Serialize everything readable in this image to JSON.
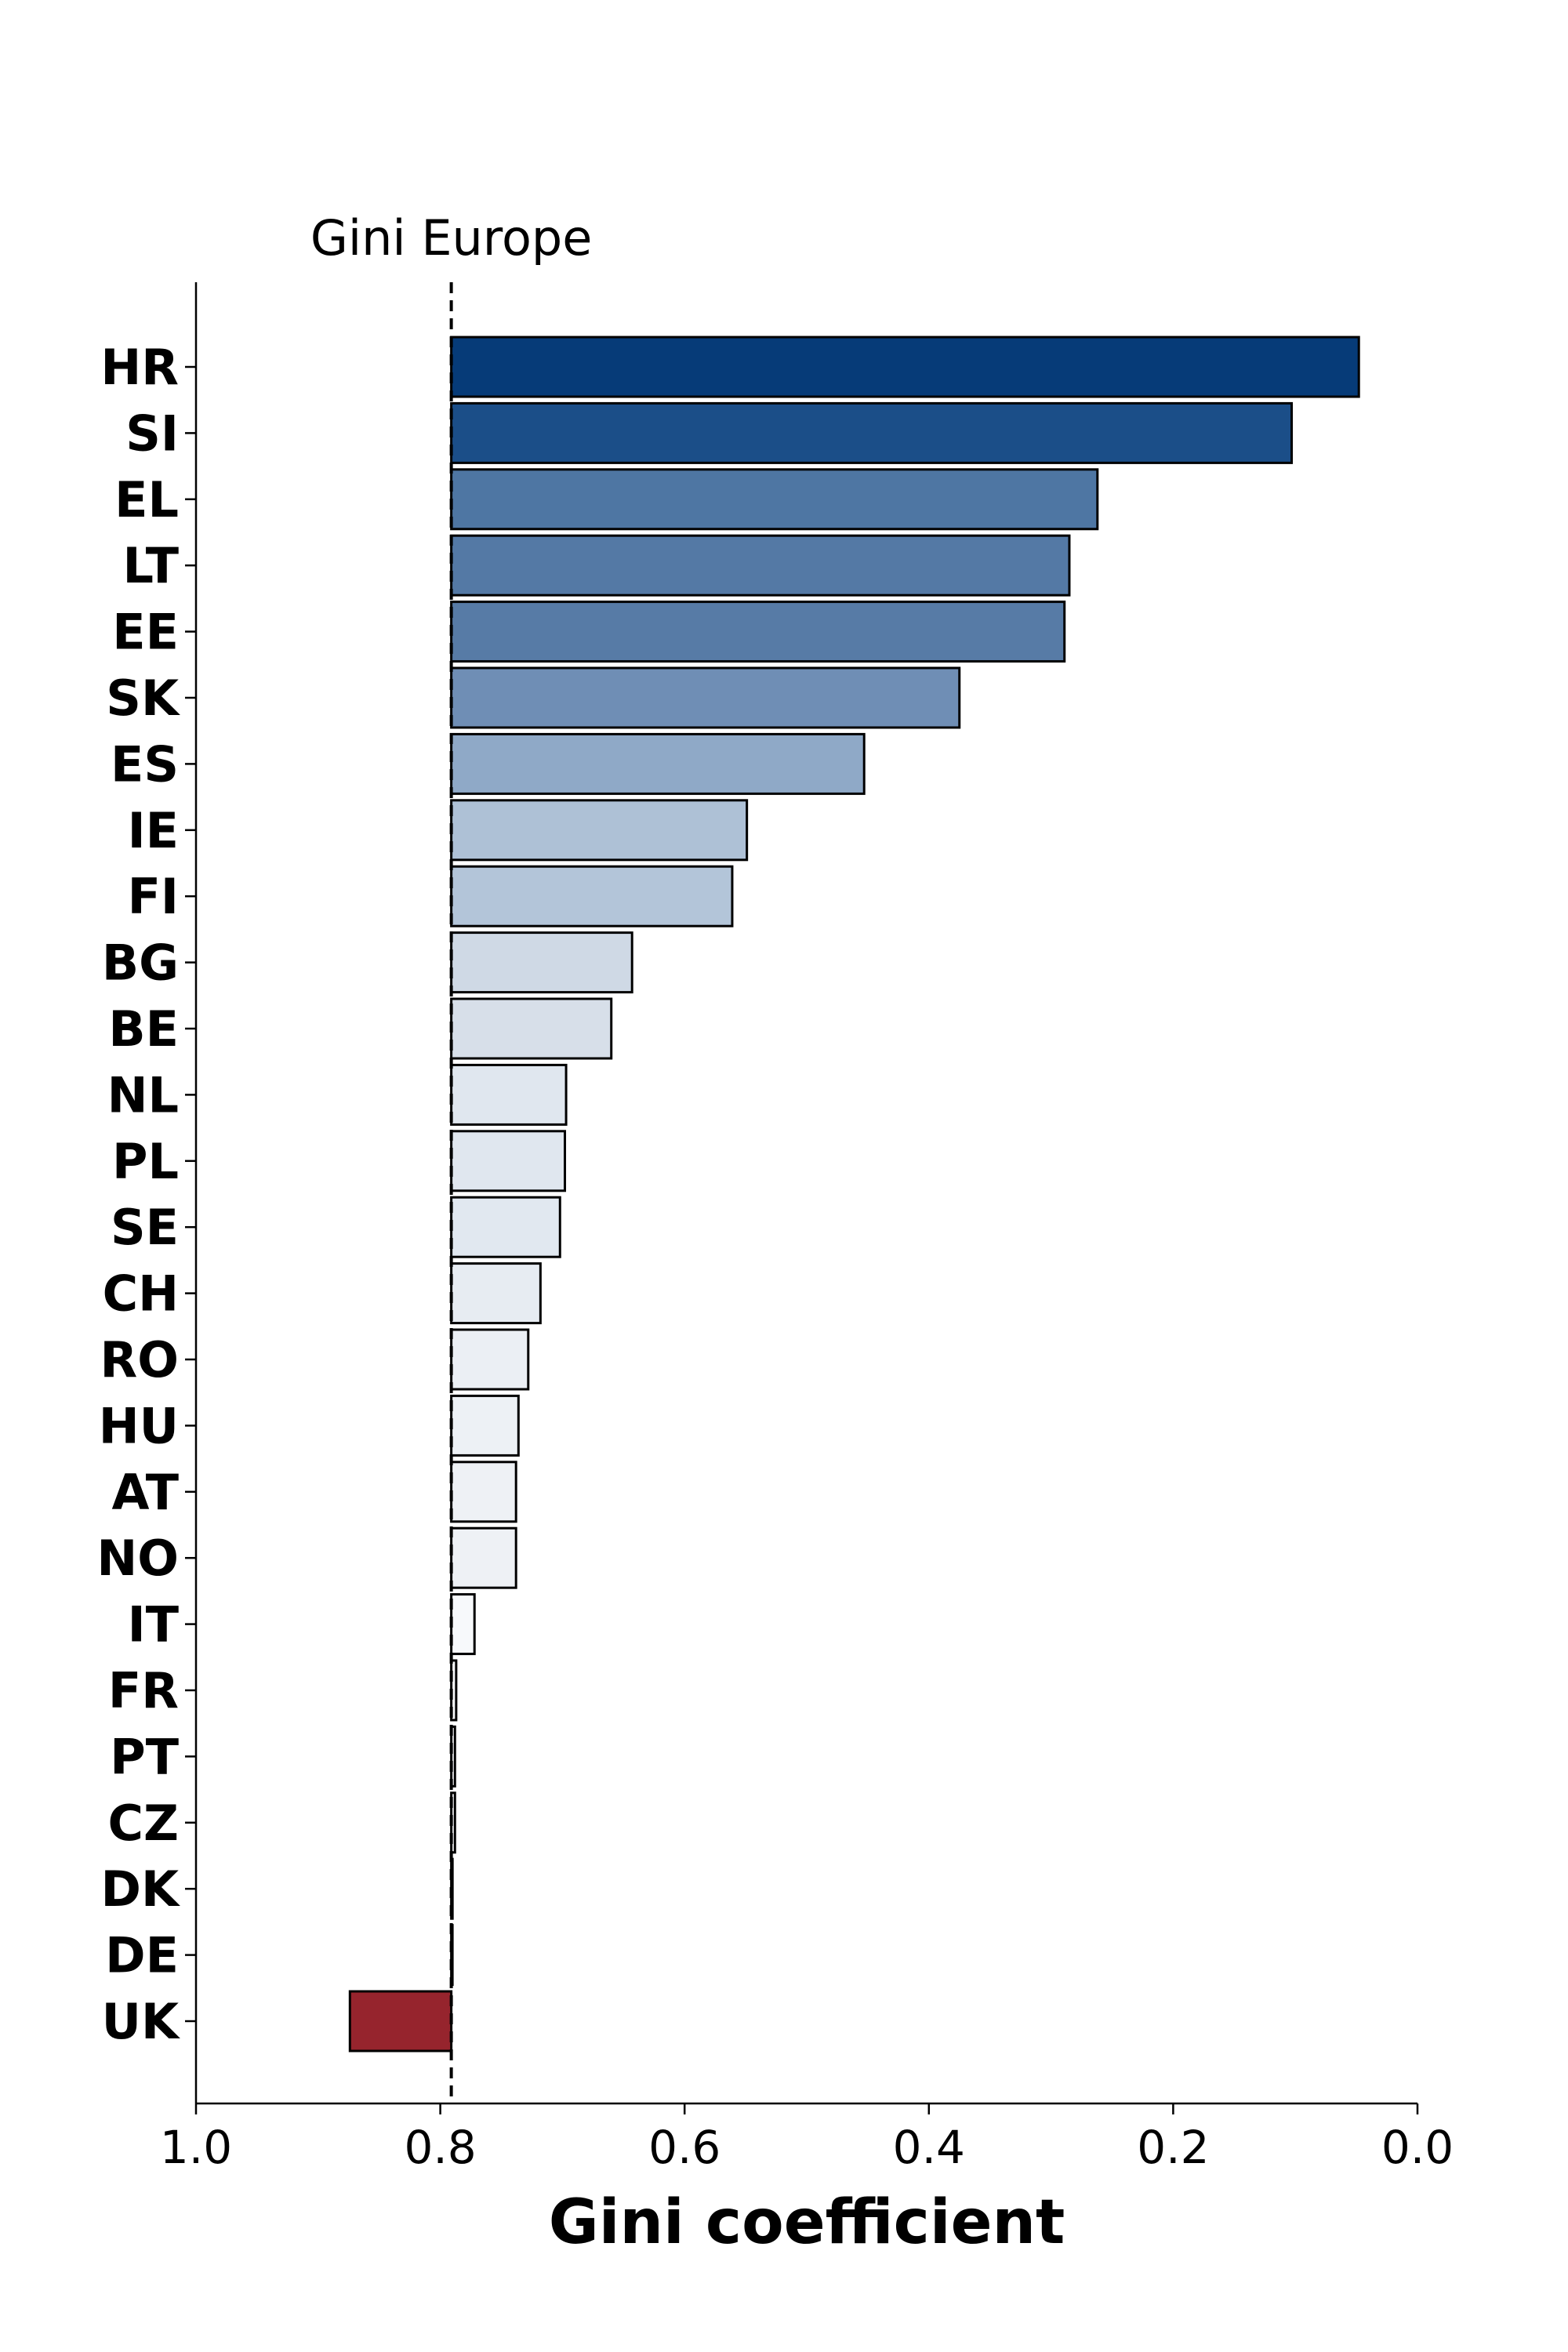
{
  "chart_data": {
    "type": "bar",
    "orientation": "horizontal",
    "categories": [
      "HR",
      "SI",
      "EL",
      "LT",
      "EE",
      "SK",
      "ES",
      "IE",
      "FI",
      "BG",
      "BE",
      "NL",
      "PL",
      "SE",
      "CH",
      "RO",
      "HU",
      "AT",
      "NO",
      "IT",
      "FR",
      "PT",
      "CZ",
      "DK",
      "DE",
      "UK"
    ],
    "values": [
      0.048,
      0.103,
      0.262,
      0.285,
      0.289,
      0.375,
      0.453,
      0.549,
      0.561,
      0.643,
      0.66,
      0.697,
      0.698,
      0.702,
      0.718,
      0.728,
      0.736,
      0.738,
      0.738,
      0.772,
      0.787,
      0.788,
      0.788,
      0.79,
      0.791,
      0.874
    ],
    "colors": [
      "#063b78",
      "#1b4e88",
      "#4e76a3",
      "#5479a5",
      "#577ba6",
      "#6f8eb5",
      "#8fa9c7",
      "#aec1d6",
      "#b3c5d9",
      "#cfd9e5",
      "#d7dfe9",
      "#e0e7ef",
      "#e0e7ef",
      "#e1e8f0",
      "#e7ecf2",
      "#ebeff4",
      "#edf1f5",
      "#eef1f5",
      "#eef1f5",
      "#f7f9fb",
      "#fafbfc",
      "#fbfbfd",
      "#fbfbfd",
      "#fcfcfd",
      "#fcfcfd",
      "#96242d"
    ],
    "reference": {
      "label": "Gini Europe",
      "value": 0.791
    },
    "xlabel": "Gini coefficient",
    "xlim": [
      1.0,
      0.0
    ],
    "xticks": [
      "1.0",
      "0.8",
      "0.6",
      "0.4",
      "0.2",
      "0.0"
    ],
    "grid": false,
    "legend": "none"
  }
}
